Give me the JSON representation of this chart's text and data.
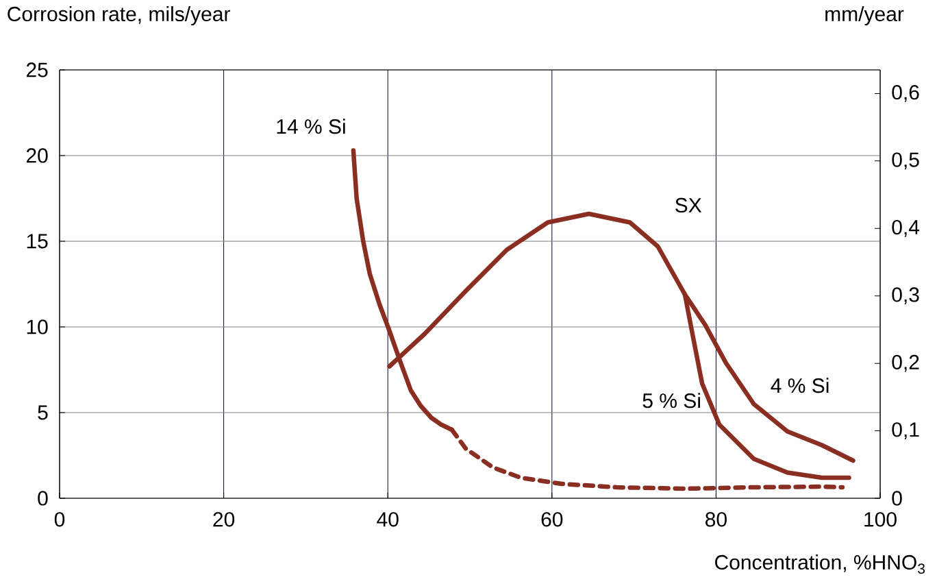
{
  "chart_data": {
    "type": "line",
    "xlabel": "Concentration, %HNO$_{3}$",
    "ylabel": "Corrosion rate, mils/year",
    "y2label": "mm/year",
    "xlim": [
      0,
      100
    ],
    "xticks": [
      0,
      20,
      40,
      60,
      80,
      100
    ],
    "ylim": [
      0,
      25
    ],
    "yticks": [
      0,
      5,
      10,
      15,
      20,
      25
    ],
    "y2lim": [
      0,
      0.635
    ],
    "y2ticks": [
      {
        "value": 0,
        "label": "0"
      },
      {
        "value": 0.1,
        "label": "0,1"
      },
      {
        "value": 0.2,
        "label": "0,2"
      },
      {
        "value": 0.3,
        "label": "0,3"
      },
      {
        "value": 0.4,
        "label": "0,4"
      },
      {
        "value": 0.5,
        "label": "0,5"
      },
      {
        "value": 0.6,
        "label": "0,6"
      }
    ],
    "grid": true,
    "marker": "none",
    "series": [
      {
        "name": "14 % Si",
        "color": "#8b2e22",
        "line_style": "solid",
        "x": [
          35.8,
          36.2,
          37,
          37.8,
          39,
          40.1,
          41.5,
          42.8,
          44,
          45.3,
          46.5,
          47.8
        ],
        "values": [
          20.3,
          17.5,
          15,
          13.1,
          11.3,
          9.9,
          8,
          6.3,
          5.4,
          4.7,
          4.3,
          4.0
        ]
      },
      {
        "color": "#8b2e22",
        "line_style": "dashed",
        "x": [
          47.8,
          49.5,
          52.8,
          56.2,
          61.2,
          67.9,
          76.2,
          84.6,
          92.9,
          95.4
        ],
        "values": [
          4.0,
          2.9,
          1.8,
          1.2,
          0.84,
          0.64,
          0.56,
          0.64,
          0.68,
          0.64
        ]
      },
      {
        "name": "4 % Si",
        "color": "#8b2e22",
        "line_style": "solid",
        "x": [
          40.2,
          44.5,
          49.5,
          54.5,
          59.5,
          64.5,
          69.5,
          72.9,
          76.2,
          78.7,
          81.2,
          84.6,
          88.7,
          92.9,
          96.7
        ],
        "values": [
          7.7,
          9.6,
          12.1,
          14.5,
          16.1,
          16.6,
          16.1,
          14.7,
          11.9,
          10.1,
          7.9,
          5.5,
          3.9,
          3.1,
          2.2
        ]
      },
      {
        "name": "5 % Si",
        "color": "#8b2e22",
        "line_style": "solid",
        "x": [
          76.2,
          77,
          78.3,
          80.4,
          84.6,
          88.7,
          92.9,
          96.2
        ],
        "values": [
          11.9,
          9.9,
          6.7,
          4.3,
          2.3,
          1.5,
          1.2,
          1.2
        ]
      }
    ],
    "annotations": [
      "SX"
    ]
  }
}
